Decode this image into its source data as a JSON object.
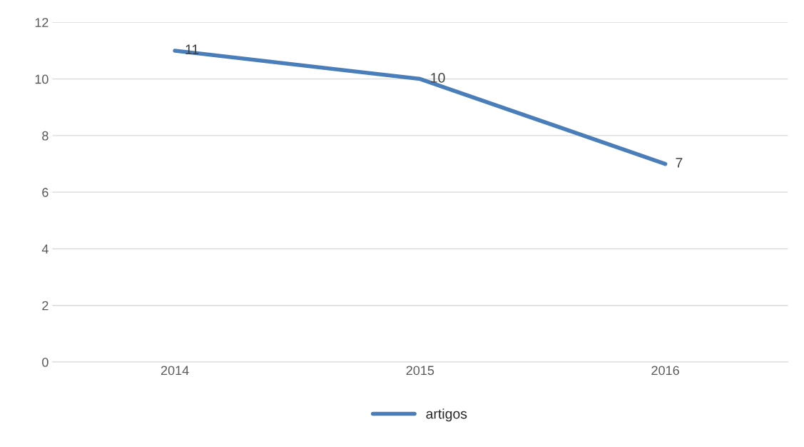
{
  "chart_data": {
    "type": "line",
    "categories": [
      "2014",
      "2015",
      "2016"
    ],
    "series": [
      {
        "name": "artigos",
        "color": "#4a7ebb",
        "values": [
          11,
          10,
          7
        ]
      }
    ],
    "ylim": [
      0,
      12
    ],
    "yticks": [
      0,
      2,
      4,
      6,
      8,
      10,
      12
    ],
    "grid": "y",
    "legend": "bottom",
    "data_labels": true,
    "marker": "none",
    "line_style": "solid"
  }
}
